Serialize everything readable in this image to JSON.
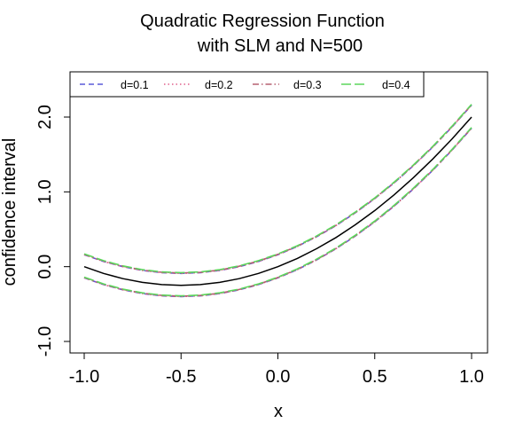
{
  "chart_data": {
    "type": "line",
    "title": "Quadratic Regression Function",
    "subtitle": "with SLM and N=500",
    "xlabel": "x",
    "ylabel": "confidence interval",
    "xlim": [
      -1.0,
      1.0
    ],
    "ylim": [
      -1.2,
      2.55
    ],
    "x_ticks": [
      -1.0,
      -0.5,
      0.0,
      0.5,
      1.0
    ],
    "x_tick_labels": [
      "-1.0",
      "-0.5",
      "0.0",
      "0.5",
      "1.0"
    ],
    "y_ticks": [
      -1.0,
      0.0,
      1.0,
      2.0
    ],
    "y_tick_labels": [
      "-1.0",
      "0.0",
      "1.0",
      "2.0"
    ],
    "grid": false,
    "legend_placement": "top",
    "x": [
      -1.0,
      -0.9,
      -0.8,
      -0.7,
      -0.6,
      -0.5,
      -0.4,
      -0.3,
      -0.2,
      -0.1,
      0.0,
      0.1,
      0.2,
      0.3,
      0.4,
      0.5,
      0.6,
      0.7,
      0.8,
      0.9,
      1.0
    ],
    "true_function": {
      "color": "#000000",
      "values": [
        0.0,
        -0.09,
        -0.16,
        -0.21,
        -0.24,
        -0.25,
        -0.24,
        -0.21,
        -0.16,
        -0.09,
        0.0,
        0.11,
        0.24,
        0.39,
        0.56,
        0.75,
        0.96,
        1.19,
        1.44,
        1.71,
        2.0
      ]
    },
    "series": [
      {
        "name": "d=0.1",
        "color": "#5a5ad8",
        "dash": "dashed",
        "upper": [
          0.16,
          0.07,
          0.0,
          -0.05,
          -0.08,
          -0.09,
          -0.08,
          -0.05,
          0.0,
          0.07,
          0.16,
          0.27,
          0.4,
          0.55,
          0.72,
          0.91,
          1.12,
          1.35,
          1.6,
          1.87,
          2.16
        ],
        "lower": [
          -0.15,
          -0.24,
          -0.31,
          -0.36,
          -0.39,
          -0.4,
          -0.39,
          -0.36,
          -0.31,
          -0.24,
          -0.15,
          -0.04,
          0.09,
          0.24,
          0.41,
          0.6,
          0.81,
          1.04,
          1.29,
          1.56,
          1.85
        ]
      },
      {
        "name": "d=0.2",
        "color": "#e0608c",
        "dash": "dotted",
        "upper": [
          0.16,
          0.07,
          0.0,
          -0.05,
          -0.08,
          -0.09,
          -0.08,
          -0.05,
          0.0,
          0.07,
          0.16,
          0.27,
          0.4,
          0.55,
          0.72,
          0.91,
          1.12,
          1.35,
          1.6,
          1.87,
          2.16
        ],
        "lower": [
          -0.15,
          -0.24,
          -0.31,
          -0.36,
          -0.39,
          -0.4,
          -0.39,
          -0.36,
          -0.31,
          -0.24,
          -0.15,
          -0.04,
          0.09,
          0.24,
          0.41,
          0.6,
          0.81,
          1.04,
          1.29,
          1.56,
          1.85
        ]
      },
      {
        "name": "d=0.3",
        "color": "#b56071",
        "dash": "dashdot",
        "upper": [
          0.165,
          0.075,
          0.005,
          -0.045,
          -0.075,
          -0.085,
          -0.075,
          -0.045,
          0.005,
          0.075,
          0.165,
          0.275,
          0.405,
          0.555,
          0.725,
          0.915,
          1.125,
          1.355,
          1.605,
          1.875,
          2.165
        ],
        "lower": [
          -0.145,
          -0.235,
          -0.305,
          -0.355,
          -0.385,
          -0.395,
          -0.385,
          -0.355,
          -0.305,
          -0.235,
          -0.145,
          -0.035,
          0.095,
          0.245,
          0.415,
          0.605,
          0.815,
          1.045,
          1.295,
          1.565,
          1.855
        ]
      },
      {
        "name": "d=0.4",
        "color": "#5cd65c",
        "dash": "longdash",
        "upper": [
          0.17,
          0.08,
          0.01,
          -0.04,
          -0.07,
          -0.08,
          -0.07,
          -0.04,
          0.01,
          0.08,
          0.17,
          0.28,
          0.41,
          0.56,
          0.73,
          0.92,
          1.13,
          1.36,
          1.61,
          1.88,
          2.17
        ],
        "lower": [
          -0.14,
          -0.23,
          -0.3,
          -0.35,
          -0.38,
          -0.39,
          -0.38,
          -0.35,
          -0.3,
          -0.23,
          -0.14,
          -0.03,
          0.1,
          0.25,
          0.42,
          0.61,
          0.82,
          1.05,
          1.3,
          1.57,
          1.86
        ]
      }
    ]
  }
}
